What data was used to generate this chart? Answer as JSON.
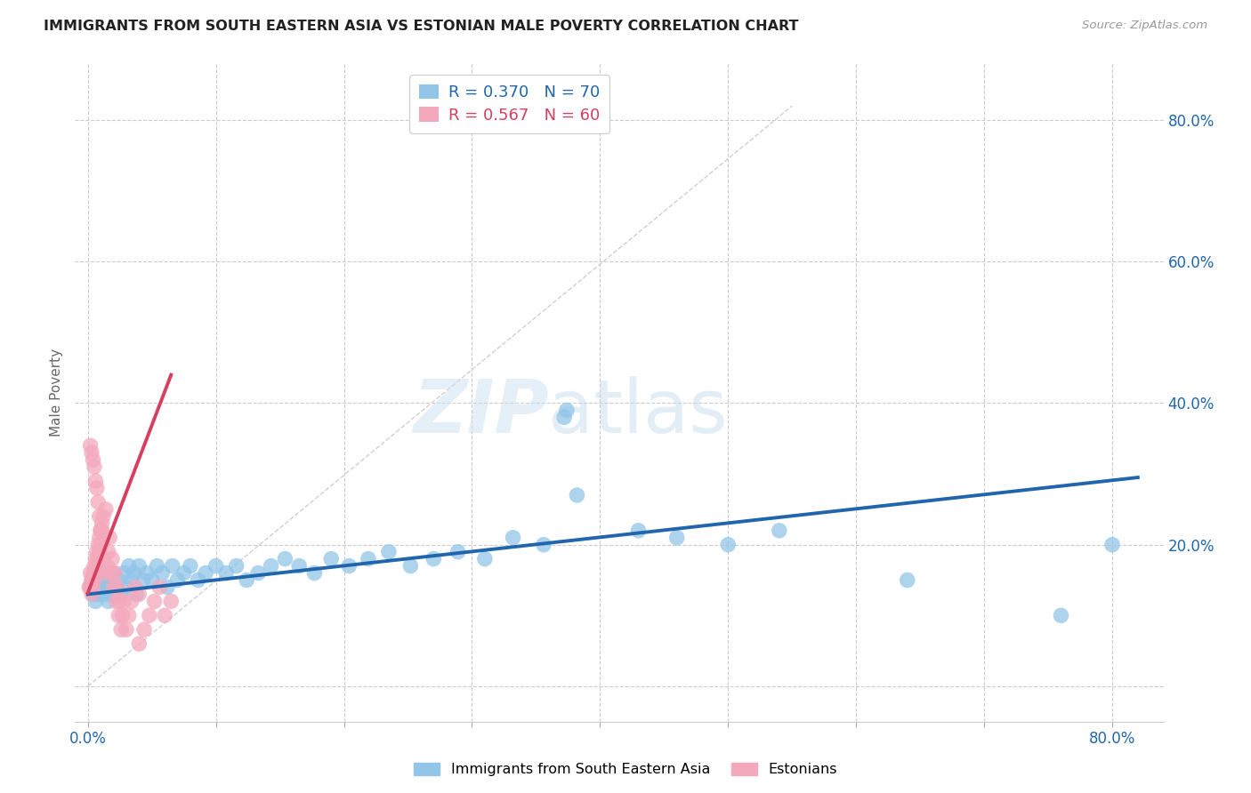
{
  "title": "IMMIGRANTS FROM SOUTH EASTERN ASIA VS ESTONIAN MALE POVERTY CORRELATION CHART",
  "source": "Source: ZipAtlas.com",
  "ylabel": "Male Poverty",
  "ytick_values": [
    0.0,
    0.2,
    0.4,
    0.6,
    0.8
  ],
  "xtick_values": [
    0.0,
    0.1,
    0.2,
    0.3,
    0.4,
    0.5,
    0.6,
    0.7,
    0.8
  ],
  "xtick_show_labels": [
    0.0,
    0.8
  ],
  "xlim": [
    -0.01,
    0.84
  ],
  "ylim": [
    -0.05,
    0.88
  ],
  "legend_line1": "R = 0.370   N = 70",
  "legend_line2": "R = 0.567   N = 60",
  "legend_label_blue": "Immigrants from South Eastern Asia",
  "legend_label_pink": "Estonians",
  "blue_color": "#92c5e8",
  "pink_color": "#f4a8bc",
  "blue_line_color": "#2166ac",
  "pink_line_color": "#d63f5e",
  "blue_legend_color": "#92c5e8",
  "pink_legend_color": "#f4a8bc",
  "blue_scatter_x": [
    0.002,
    0.003,
    0.004,
    0.005,
    0.006,
    0.007,
    0.008,
    0.009,
    0.01,
    0.011,
    0.012,
    0.013,
    0.014,
    0.015,
    0.016,
    0.017,
    0.018,
    0.019,
    0.02,
    0.022,
    0.024,
    0.026,
    0.028,
    0.03,
    0.032,
    0.034,
    0.036,
    0.038,
    0.04,
    0.043,
    0.046,
    0.05,
    0.054,
    0.058,
    0.062,
    0.066,
    0.07,
    0.075,
    0.08,
    0.086,
    0.092,
    0.1,
    0.108,
    0.116,
    0.124,
    0.133,
    0.143,
    0.154,
    0.165,
    0.177,
    0.19,
    0.204,
    0.219,
    0.235,
    0.252,
    0.27,
    0.289,
    0.31,
    0.332,
    0.356,
    0.372,
    0.374,
    0.382,
    0.43,
    0.46,
    0.5,
    0.54,
    0.64,
    0.76,
    0.8
  ],
  "blue_scatter_y": [
    0.14,
    0.15,
    0.13,
    0.16,
    0.12,
    0.15,
    0.14,
    0.13,
    0.16,
    0.14,
    0.15,
    0.13,
    0.16,
    0.14,
    0.12,
    0.15,
    0.14,
    0.13,
    0.16,
    0.14,
    0.15,
    0.13,
    0.16,
    0.14,
    0.17,
    0.15,
    0.16,
    0.13,
    0.17,
    0.15,
    0.16,
    0.15,
    0.17,
    0.16,
    0.14,
    0.17,
    0.15,
    0.16,
    0.17,
    0.15,
    0.16,
    0.17,
    0.16,
    0.17,
    0.15,
    0.16,
    0.17,
    0.18,
    0.17,
    0.16,
    0.18,
    0.17,
    0.18,
    0.19,
    0.17,
    0.18,
    0.19,
    0.18,
    0.21,
    0.2,
    0.38,
    0.39,
    0.27,
    0.22,
    0.21,
    0.2,
    0.22,
    0.15,
    0.1,
    0.2
  ],
  "pink_scatter_x": [
    0.001,
    0.002,
    0.002,
    0.003,
    0.003,
    0.004,
    0.004,
    0.005,
    0.005,
    0.006,
    0.006,
    0.007,
    0.007,
    0.008,
    0.008,
    0.009,
    0.009,
    0.01,
    0.01,
    0.011,
    0.011,
    0.012,
    0.012,
    0.013,
    0.014,
    0.015,
    0.016,
    0.017,
    0.018,
    0.019,
    0.02,
    0.021,
    0.022,
    0.023,
    0.024,
    0.025,
    0.026,
    0.027,
    0.028,
    0.03,
    0.032,
    0.034,
    0.037,
    0.04,
    0.044,
    0.048,
    0.052,
    0.056,
    0.06,
    0.065,
    0.002,
    0.003,
    0.004,
    0.005,
    0.006,
    0.007,
    0.008,
    0.009,
    0.01,
    0.04
  ],
  "pink_scatter_y": [
    0.14,
    0.16,
    0.14,
    0.15,
    0.13,
    0.16,
    0.14,
    0.17,
    0.15,
    0.18,
    0.16,
    0.19,
    0.17,
    0.2,
    0.18,
    0.21,
    0.19,
    0.22,
    0.2,
    0.23,
    0.22,
    0.24,
    0.18,
    0.16,
    0.25,
    0.17,
    0.19,
    0.21,
    0.16,
    0.18,
    0.14,
    0.16,
    0.12,
    0.14,
    0.1,
    0.12,
    0.08,
    0.1,
    0.12,
    0.08,
    0.1,
    0.12,
    0.14,
    0.06,
    0.08,
    0.1,
    0.12,
    0.14,
    0.1,
    0.12,
    0.34,
    0.33,
    0.32,
    0.31,
    0.29,
    0.28,
    0.26,
    0.24,
    0.22,
    0.13
  ],
  "blue_line_x": [
    0.0,
    0.82
  ],
  "blue_line_y": [
    0.13,
    0.295
  ],
  "pink_line_x": [
    0.0,
    0.065
  ],
  "pink_line_y": [
    0.132,
    0.44
  ],
  "diag_line_x": [
    0.0,
    0.55
  ],
  "diag_line_y": [
    0.0,
    0.82
  ]
}
